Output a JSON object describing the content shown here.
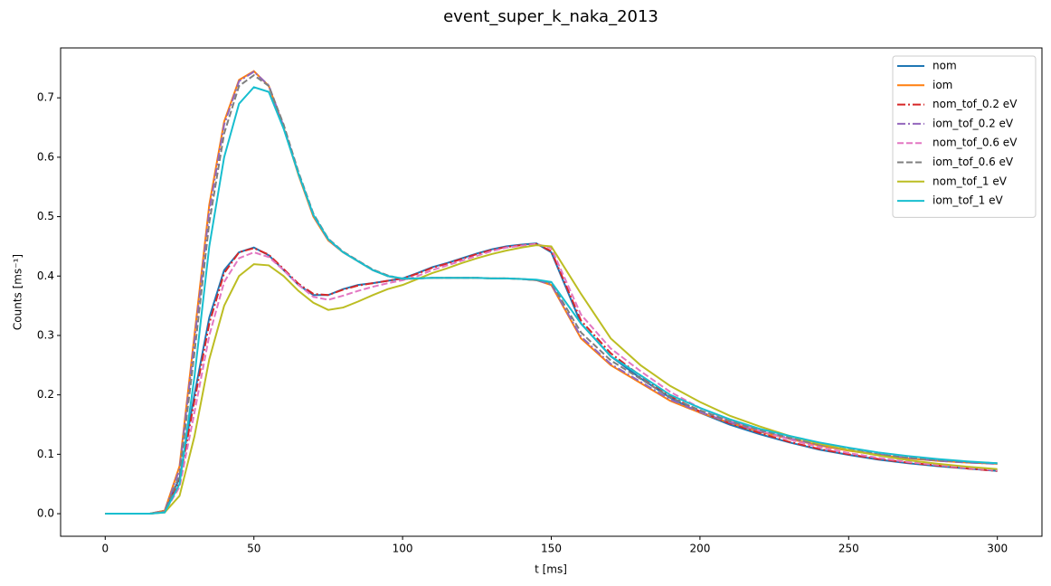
{
  "chart_data": {
    "type": "line",
    "title": "event_super_k_naka_2013",
    "xlabel": "t [ms]",
    "ylabel": "Counts [ms⁻¹]",
    "x": [
      0,
      5,
      10,
      15,
      20,
      25,
      30,
      35,
      40,
      45,
      50,
      55,
      60,
      65,
      70,
      75,
      80,
      85,
      90,
      95,
      100,
      105,
      110,
      115,
      120,
      125,
      130,
      135,
      140,
      145,
      150,
      160,
      170,
      180,
      190,
      200,
      210,
      220,
      230,
      240,
      250,
      260,
      270,
      280,
      290,
      300
    ],
    "xlim": [
      -15,
      315
    ],
    "xticks": [
      0,
      50,
      100,
      150,
      200,
      250,
      300
    ],
    "ylim": [
      -0.038,
      0.784
    ],
    "yticks": [
      {
        "value": 0,
        "label": "0.0"
      },
      0.1,
      0.2,
      0.3,
      0.4,
      0.5,
      0.6,
      0.7
    ],
    "legend": "upper right",
    "series": [
      {
        "name": "nom",
        "color": "#1f77b4",
        "linestyle": "solid",
        "values": [
          0,
          0,
          0,
          0,
          0.005,
          0.06,
          0.2,
          0.33,
          0.41,
          0.44,
          0.448,
          0.435,
          0.41,
          0.385,
          0.368,
          0.368,
          0.378,
          0.385,
          0.388,
          0.392,
          0.396,
          0.405,
          0.415,
          0.422,
          0.43,
          0.438,
          0.445,
          0.45,
          0.453,
          0.455,
          0.44,
          0.32,
          0.265,
          0.228,
          0.195,
          0.17,
          0.15,
          0.134,
          0.12,
          0.108,
          0.099,
          0.091,
          0.085,
          0.08,
          0.076,
          0.072
        ]
      },
      {
        "name": "iom",
        "color": "#ff7f0e",
        "linestyle": "solid",
        "values": [
          0,
          0,
          0,
          0,
          0.005,
          0.08,
          0.3,
          0.52,
          0.66,
          0.73,
          0.745,
          0.72,
          0.65,
          0.57,
          0.5,
          0.46,
          0.44,
          0.425,
          0.41,
          0.4,
          0.395,
          0.396,
          0.397,
          0.397,
          0.397,
          0.397,
          0.396,
          0.396,
          0.395,
          0.393,
          0.385,
          0.295,
          0.25,
          0.22,
          0.19,
          0.17,
          0.153,
          0.138,
          0.126,
          0.115,
          0.106,
          0.099,
          0.093,
          0.089,
          0.086,
          0.084
        ]
      },
      {
        "name": "nom_tof_0.2 eV",
        "color": "#d62728",
        "linestyle": "dashdot",
        "values": [
          0,
          0,
          0,
          0,
          0.004,
          0.055,
          0.19,
          0.32,
          0.405,
          0.44,
          0.447,
          0.436,
          0.412,
          0.387,
          0.37,
          0.368,
          0.377,
          0.384,
          0.388,
          0.392,
          0.396,
          0.404,
          0.414,
          0.421,
          0.429,
          0.437,
          0.444,
          0.449,
          0.452,
          0.454,
          0.442,
          0.325,
          0.27,
          0.232,
          0.198,
          0.172,
          0.152,
          0.136,
          0.121,
          0.109,
          0.1,
          0.092,
          0.086,
          0.081,
          0.076,
          0.072
        ]
      },
      {
        "name": "iom_tof_0.2 eV",
        "color": "#9467bd",
        "linestyle": "dashdot",
        "values": [
          0,
          0,
          0,
          0,
          0.004,
          0.075,
          0.29,
          0.51,
          0.655,
          0.728,
          0.744,
          0.721,
          0.652,
          0.572,
          0.502,
          0.461,
          0.44,
          0.425,
          0.41,
          0.4,
          0.395,
          0.396,
          0.397,
          0.397,
          0.397,
          0.397,
          0.396,
          0.396,
          0.395,
          0.393,
          0.386,
          0.298,
          0.252,
          0.222,
          0.192,
          0.171,
          0.154,
          0.139,
          0.127,
          0.116,
          0.107,
          0.1,
          0.094,
          0.089,
          0.086,
          0.084
        ]
      },
      {
        "name": "nom_tof_0.6 eV",
        "color": "#e377c2",
        "linestyle": "dashed",
        "values": [
          0,
          0,
          0,
          0,
          0.003,
          0.045,
          0.17,
          0.3,
          0.39,
          0.43,
          0.44,
          0.432,
          0.41,
          0.385,
          0.365,
          0.36,
          0.367,
          0.375,
          0.382,
          0.388,
          0.393,
          0.4,
          0.41,
          0.418,
          0.426,
          0.434,
          0.442,
          0.448,
          0.451,
          0.454,
          0.447,
          0.335,
          0.278,
          0.24,
          0.205,
          0.178,
          0.157,
          0.14,
          0.125,
          0.112,
          0.102,
          0.094,
          0.087,
          0.082,
          0.077,
          0.073
        ]
      },
      {
        "name": "iom_tof_0.6 eV",
        "color": "#7f7f7f",
        "linestyle": "dashed",
        "values": [
          0,
          0,
          0,
          0,
          0.003,
          0.065,
          0.27,
          0.49,
          0.64,
          0.72,
          0.738,
          0.72,
          0.655,
          0.575,
          0.505,
          0.463,
          0.441,
          0.426,
          0.411,
          0.401,
          0.395,
          0.396,
          0.397,
          0.397,
          0.397,
          0.397,
          0.396,
          0.396,
          0.395,
          0.393,
          0.389,
          0.305,
          0.258,
          0.227,
          0.196,
          0.174,
          0.156,
          0.141,
          0.128,
          0.117,
          0.108,
          0.1,
          0.094,
          0.09,
          0.087,
          0.085
        ]
      },
      {
        "name": "nom_tof_1 eV",
        "color": "#bcbd22",
        "linestyle": "solid",
        "values": [
          0,
          0,
          0,
          0,
          0.002,
          0.03,
          0.13,
          0.26,
          0.35,
          0.4,
          0.42,
          0.418,
          0.4,
          0.375,
          0.355,
          0.343,
          0.347,
          0.357,
          0.368,
          0.378,
          0.385,
          0.395,
          0.405,
          0.413,
          0.422,
          0.43,
          0.437,
          0.443,
          0.448,
          0.452,
          0.45,
          0.37,
          0.295,
          0.25,
          0.215,
          0.188,
          0.165,
          0.147,
          0.131,
          0.118,
          0.107,
          0.098,
          0.09,
          0.084,
          0.079,
          0.075
        ]
      },
      {
        "name": "iom_tof_1 eV",
        "color": "#17becf",
        "linestyle": "solid",
        "values": [
          0,
          0,
          0,
          0,
          0.002,
          0.05,
          0.23,
          0.45,
          0.6,
          0.69,
          0.718,
          0.71,
          0.648,
          0.572,
          0.503,
          0.462,
          0.44,
          0.425,
          0.41,
          0.4,
          0.396,
          0.396,
          0.397,
          0.397,
          0.397,
          0.397,
          0.396,
          0.396,
          0.395,
          0.394,
          0.39,
          0.32,
          0.265,
          0.233,
          0.2,
          0.178,
          0.159,
          0.143,
          0.131,
          0.12,
          0.111,
          0.103,
          0.097,
          0.092,
          0.088,
          0.085
        ]
      }
    ]
  }
}
